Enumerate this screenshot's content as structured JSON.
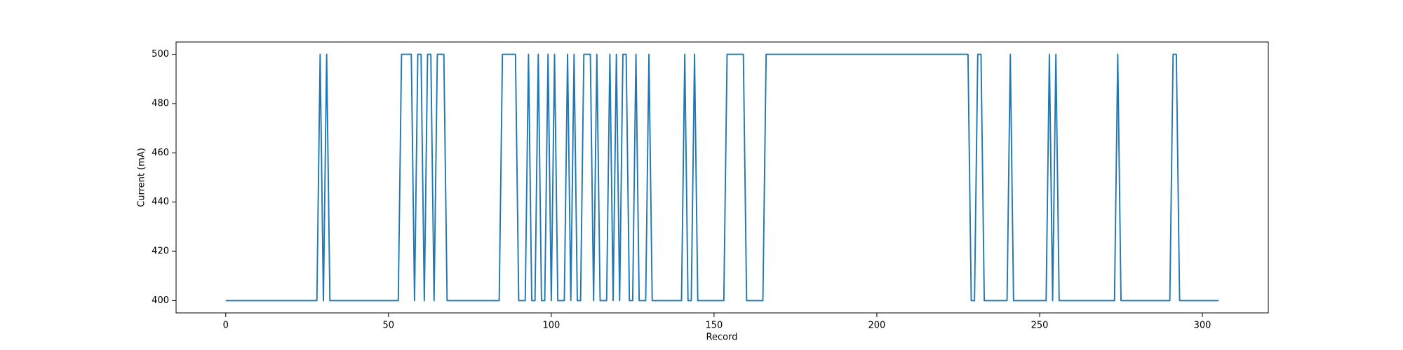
{
  "chart_data": {
    "type": "line",
    "xlabel": "Record",
    "ylabel": "Current (mA)",
    "color": "#1f77b4",
    "x": [
      0,
      1,
      2,
      3,
      4,
      5,
      6,
      7,
      8,
      9,
      10,
      11,
      12,
      13,
      14,
      15,
      16,
      17,
      18,
      19,
      20,
      21,
      22,
      23,
      24,
      25,
      26,
      27,
      28,
      29,
      30,
      31,
      32,
      33,
      34,
      35,
      36,
      37,
      38,
      39,
      40,
      41,
      42,
      43,
      44,
      45,
      46,
      47,
      48,
      49,
      50,
      51,
      52,
      53,
      54,
      55,
      56,
      57,
      58,
      59,
      60,
      61,
      62,
      63,
      64,
      65,
      66,
      67,
      68,
      69,
      70,
      71,
      72,
      73,
      74,
      75,
      76,
      77,
      78,
      79,
      80,
      81,
      82,
      83,
      84,
      85,
      86,
      87,
      88,
      89,
      90,
      91,
      92,
      93,
      94,
      95,
      96,
      97,
      98,
      99,
      100,
      101,
      102,
      103,
      104,
      105,
      106,
      107,
      108,
      109,
      110,
      111,
      112,
      113,
      114,
      115,
      116,
      117,
      118,
      119,
      120,
      121,
      122,
      123,
      124,
      125,
      126,
      127,
      128,
      129,
      130,
      131,
      132,
      133,
      134,
      135,
      136,
      137,
      138,
      139,
      140,
      141,
      142,
      143,
      144,
      145,
      146,
      147,
      148,
      149,
      150,
      151,
      152,
      153,
      154,
      155,
      156,
      157,
      158,
      159,
      160,
      161,
      162,
      163,
      164,
      165,
      166,
      167,
      168,
      169,
      170,
      171,
      172,
      173,
      174,
      175,
      176,
      177,
      178,
      179,
      180,
      181,
      182,
      183,
      184,
      185,
      186,
      187,
      188,
      189,
      190,
      191,
      192,
      193,
      194,
      195,
      196,
      197,
      198,
      199,
      200,
      201,
      202,
      203,
      204,
      205,
      206,
      207,
      208,
      209,
      210,
      211,
      212,
      213,
      214,
      215,
      216,
      217,
      218,
      219,
      220,
      221,
      222,
      223,
      224,
      225,
      226,
      227,
      228,
      229,
      230,
      231,
      232,
      233,
      234,
      235,
      236,
      237,
      238,
      239,
      240,
      241,
      242,
      243,
      244,
      245,
      246,
      247,
      248,
      249,
      250,
      251,
      252,
      253,
      254,
      255,
      256,
      257,
      258,
      259,
      260,
      261,
      262,
      263,
      264,
      265,
      266,
      267,
      268,
      269,
      270,
      271,
      272,
      273,
      274,
      275,
      276,
      277,
      278,
      279,
      280,
      281,
      282,
      283,
      284,
      285,
      286,
      287,
      288,
      289,
      290,
      291,
      292,
      293,
      294,
      295,
      296,
      297,
      298,
      299,
      300,
      301,
      302,
      303,
      304,
      305
    ],
    "values": [
      400,
      400,
      400,
      400,
      400,
      400,
      400,
      400,
      400,
      400,
      400,
      400,
      400,
      400,
      400,
      400,
      400,
      400,
      400,
      400,
      400,
      400,
      400,
      400,
      400,
      400,
      400,
      400,
      400,
      500,
      400,
      500,
      400,
      400,
      400,
      400,
      400,
      400,
      400,
      400,
      400,
      400,
      400,
      400,
      400,
      400,
      400,
      400,
      400,
      400,
      400,
      400,
      400,
      400,
      500,
      500,
      500,
      500,
      400,
      500,
      500,
      400,
      500,
      500,
      400,
      500,
      500,
      500,
      400,
      400,
      400,
      400,
      400,
      400,
      400,
      400,
      400,
      400,
      400,
      400,
      400,
      400,
      400,
      400,
      400,
      500,
      500,
      500,
      500,
      500,
      400,
      400,
      400,
      500,
      400,
      400,
      500,
      400,
      400,
      500,
      400,
      500,
      400,
      400,
      400,
      500,
      400,
      500,
      400,
      400,
      500,
      500,
      500,
      400,
      500,
      400,
      400,
      400,
      500,
      400,
      500,
      400,
      500,
      500,
      400,
      400,
      500,
      400,
      400,
      400,
      500,
      400,
      400,
      400,
      400,
      400,
      400,
      400,
      400,
      400,
      400,
      500,
      400,
      400,
      500,
      400,
      400,
      400,
      400,
      400,
      400,
      400,
      400,
      400,
      500,
      500,
      500,
      500,
      500,
      500,
      400,
      400,
      400,
      400,
      400,
      400,
      500,
      500,
      500,
      500,
      500,
      500,
      500,
      500,
      500,
      500,
      500,
      500,
      500,
      500,
      500,
      500,
      500,
      500,
      500,
      500,
      500,
      500,
      500,
      500,
      500,
      500,
      500,
      500,
      500,
      500,
      500,
      500,
      500,
      500,
      500,
      500,
      500,
      500,
      500,
      500,
      500,
      500,
      500,
      500,
      500,
      500,
      500,
      500,
      500,
      500,
      500,
      500,
      500,
      500,
      500,
      500,
      500,
      500,
      500,
      500,
      500,
      500,
      500,
      400,
      400,
      500,
      500,
      400,
      400,
      400,
      400,
      400,
      400,
      400,
      400,
      500,
      400,
      400,
      400,
      400,
      400,
      400,
      400,
      400,
      400,
      400,
      400,
      500,
      400,
      500,
      400,
      400,
      400,
      400,
      400,
      400,
      400,
      400,
      400,
      400,
      400,
      400,
      400,
      400,
      400,
      400,
      400,
      400,
      500,
      400,
      400,
      400,
      400,
      400,
      400,
      400,
      400,
      400,
      400,
      400,
      400,
      400,
      400,
      400,
      400,
      500,
      500,
      400,
      400,
      400,
      400,
      400,
      400,
      400,
      400,
      400,
      400,
      400,
      400,
      400
    ],
    "xlim": [
      -15.25,
      320.25
    ],
    "xticks": [
      0,
      50,
      100,
      150,
      200,
      250,
      300
    ],
    "ylim": [
      395,
      505
    ],
    "yticks": [
      400,
      420,
      440,
      460,
      480,
      500
    ]
  }
}
